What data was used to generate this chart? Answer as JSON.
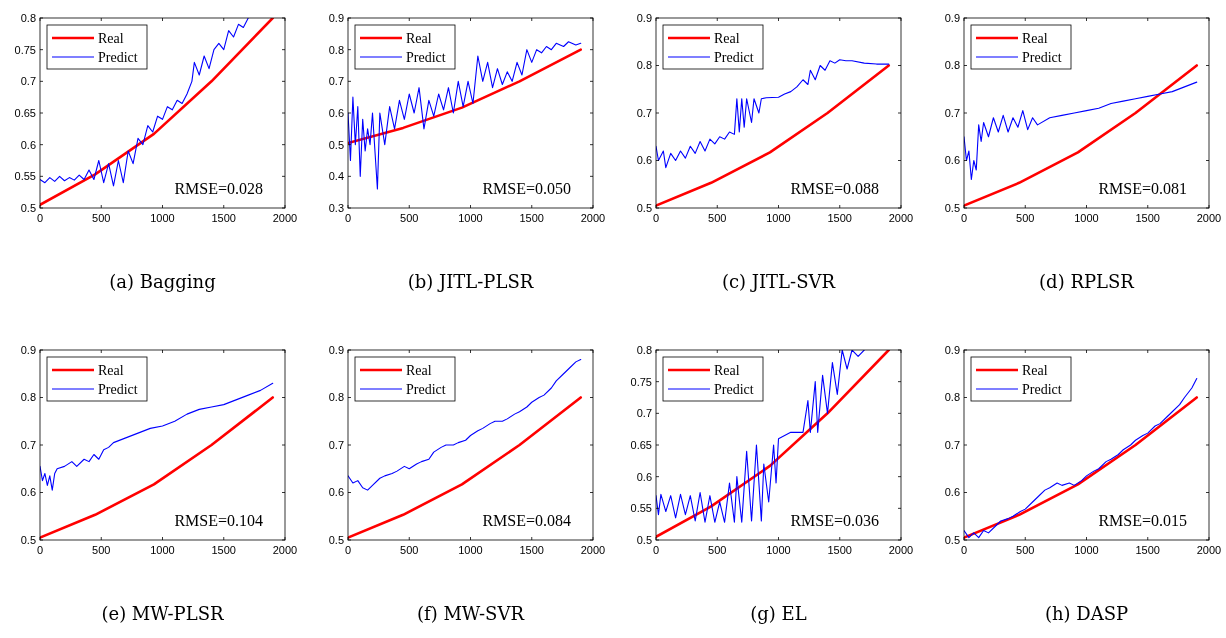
{
  "chart_data": [
    {
      "type": "line",
      "title": "(a) Bagging",
      "xlim": [
        0,
        2000
      ],
      "xticks": [
        0,
        500,
        1000,
        1500,
        2000
      ],
      "ylim": [
        0.5,
        0.8
      ],
      "yticks": [
        0.5,
        0.55,
        0.6,
        0.65,
        0.7,
        0.75,
        0.8
      ],
      "legend": "top left",
      "annotations": [
        "RMSE=0.028"
      ],
      "series": [
        {
          "name": "Real",
          "color": "#ff0000",
          "x": [
            0,
            450,
            930,
            1400,
            1900
          ],
          "values": [
            0.505,
            0.553,
            0.617,
            0.7,
            0.8
          ]
        },
        {
          "name": "Predict",
          "color": "#0000ff",
          "x": [
            0,
            40,
            80,
            120,
            160,
            200,
            240,
            280,
            320,
            360,
            400,
            440,
            480,
            520,
            560,
            600,
            640,
            680,
            720,
            760,
            800,
            840,
            880,
            920,
            960,
            1000,
            1040,
            1080,
            1120,
            1160,
            1200,
            1240,
            1260,
            1300,
            1340,
            1380,
            1420,
            1460,
            1500,
            1540,
            1580,
            1620,
            1660,
            1700
          ],
          "values": [
            0.545,
            0.54,
            0.548,
            0.542,
            0.55,
            0.543,
            0.548,
            0.544,
            0.552,
            0.545,
            0.56,
            0.545,
            0.575,
            0.54,
            0.57,
            0.535,
            0.575,
            0.54,
            0.59,
            0.57,
            0.61,
            0.6,
            0.63,
            0.62,
            0.645,
            0.64,
            0.66,
            0.655,
            0.67,
            0.665,
            0.68,
            0.7,
            0.73,
            0.71,
            0.74,
            0.72,
            0.75,
            0.76,
            0.75,
            0.78,
            0.77,
            0.79,
            0.785,
            0.8
          ]
        }
      ]
    },
    {
      "type": "line",
      "title": "(b) JITL-PLSR",
      "xlim": [
        0,
        2000
      ],
      "xticks": [
        0,
        500,
        1000,
        1500,
        2000
      ],
      "ylim": [
        0.3,
        0.9
      ],
      "yticks": [
        0.3,
        0.4,
        0.5,
        0.6,
        0.7,
        0.8,
        0.9
      ],
      "legend": "top left",
      "annotations": [
        "RMSE=0.050"
      ],
      "series": [
        {
          "name": "Real",
          "color": "#ff0000",
          "x": [
            0,
            450,
            930,
            1400,
            1900
          ],
          "values": [
            0.505,
            0.553,
            0.617,
            0.7,
            0.8
          ]
        },
        {
          "name": "Predict",
          "color": "#0000ff",
          "x": [
            0,
            20,
            40,
            60,
            80,
            100,
            120,
            140,
            160,
            180,
            200,
            240,
            260,
            300,
            340,
            380,
            420,
            460,
            500,
            540,
            580,
            620,
            660,
            700,
            740,
            780,
            820,
            860,
            900,
            940,
            980,
            1020,
            1060,
            1100,
            1140,
            1180,
            1220,
            1260,
            1300,
            1340,
            1380,
            1420,
            1460,
            1500,
            1540,
            1580,
            1620,
            1660,
            1700,
            1760,
            1800,
            1860,
            1900
          ],
          "values": [
            0.6,
            0.45,
            0.65,
            0.5,
            0.62,
            0.4,
            0.58,
            0.48,
            0.55,
            0.5,
            0.6,
            0.36,
            0.6,
            0.5,
            0.62,
            0.55,
            0.64,
            0.58,
            0.66,
            0.6,
            0.68,
            0.55,
            0.64,
            0.59,
            0.66,
            0.61,
            0.68,
            0.6,
            0.7,
            0.62,
            0.7,
            0.63,
            0.78,
            0.7,
            0.76,
            0.68,
            0.74,
            0.69,
            0.73,
            0.7,
            0.76,
            0.72,
            0.8,
            0.76,
            0.8,
            0.79,
            0.81,
            0.8,
            0.82,
            0.81,
            0.825,
            0.815,
            0.82
          ]
        }
      ]
    },
    {
      "type": "line",
      "title": "(c) JITL-SVR",
      "xlim": [
        0,
        2000
      ],
      "xticks": [
        0,
        500,
        1000,
        1500,
        2000
      ],
      "ylim": [
        0.5,
        0.9
      ],
      "yticks": [
        0.5,
        0.6,
        0.7,
        0.8,
        0.9
      ],
      "legend": "top left",
      "annotations": [
        "RMSE=0.088"
      ],
      "series": [
        {
          "name": "Real",
          "color": "#ff0000",
          "x": [
            0,
            450,
            930,
            1400,
            1900
          ],
          "values": [
            0.505,
            0.553,
            0.617,
            0.7,
            0.8
          ]
        },
        {
          "name": "Predict",
          "color": "#0000ff",
          "x": [
            0,
            20,
            60,
            80,
            120,
            160,
            200,
            240,
            280,
            320,
            360,
            400,
            440,
            480,
            520,
            560,
            600,
            640,
            660,
            680,
            700,
            720,
            740,
            780,
            800,
            840,
            860,
            900,
            1000,
            1050,
            1100,
            1150,
            1200,
            1240,
            1260,
            1300,
            1340,
            1380,
            1420,
            1460,
            1500,
            1550,
            1600,
            1700,
            1800,
            1900
          ],
          "values": [
            0.63,
            0.6,
            0.62,
            0.585,
            0.615,
            0.6,
            0.62,
            0.605,
            0.63,
            0.615,
            0.64,
            0.62,
            0.645,
            0.635,
            0.65,
            0.645,
            0.66,
            0.655,
            0.73,
            0.66,
            0.73,
            0.67,
            0.73,
            0.68,
            0.73,
            0.7,
            0.73,
            0.732,
            0.733,
            0.74,
            0.745,
            0.755,
            0.77,
            0.76,
            0.79,
            0.77,
            0.8,
            0.79,
            0.81,
            0.805,
            0.812,
            0.81,
            0.81,
            0.805,
            0.803,
            0.803
          ]
        }
      ]
    },
    {
      "type": "line",
      "title": "(d) RPLSR",
      "xlim": [
        0,
        2000
      ],
      "xticks": [
        0,
        500,
        1000,
        1500,
        2000
      ],
      "ylim": [
        0.5,
        0.9
      ],
      "yticks": [
        0.5,
        0.6,
        0.7,
        0.8,
        0.9
      ],
      "legend": "top left",
      "annotations": [
        "RMSE=0.081"
      ],
      "series": [
        {
          "name": "Real",
          "color": "#ff0000",
          "x": [
            0,
            450,
            930,
            1400,
            1900
          ],
          "values": [
            0.505,
            0.553,
            0.617,
            0.7,
            0.8
          ]
        },
        {
          "name": "Predict",
          "color": "#0000ff",
          "x": [
            0,
            20,
            40,
            60,
            80,
            100,
            120,
            140,
            160,
            200,
            240,
            280,
            320,
            360,
            400,
            440,
            480,
            520,
            560,
            600,
            700,
            800,
            900,
            1000,
            1100,
            1200,
            1300,
            1400,
            1500,
            1600,
            1700,
            1800,
            1900
          ],
          "values": [
            0.65,
            0.6,
            0.62,
            0.56,
            0.6,
            0.58,
            0.675,
            0.64,
            0.68,
            0.65,
            0.69,
            0.66,
            0.695,
            0.66,
            0.69,
            0.67,
            0.705,
            0.665,
            0.69,
            0.675,
            0.69,
            0.695,
            0.7,
            0.705,
            0.71,
            0.72,
            0.725,
            0.73,
            0.735,
            0.74,
            0.745,
            0.755,
            0.765
          ]
        }
      ]
    },
    {
      "type": "line",
      "title": "(e) MW-PLSR",
      "xlim": [
        0,
        2000
      ],
      "xticks": [
        0,
        500,
        1000,
        1500,
        2000
      ],
      "ylim": [
        0.5,
        0.9
      ],
      "yticks": [
        0.5,
        0.6,
        0.7,
        0.8,
        0.9
      ],
      "legend": "top left",
      "annotations": [
        "RMSE=0.104"
      ],
      "series": [
        {
          "name": "Real",
          "color": "#ff0000",
          "x": [
            0,
            450,
            930,
            1400,
            1900
          ],
          "values": [
            0.505,
            0.553,
            0.617,
            0.7,
            0.8
          ]
        },
        {
          "name": "Predict",
          "color": "#0000ff",
          "x": [
            0,
            20,
            40,
            60,
            80,
            100,
            120,
            140,
            200,
            260,
            300,
            360,
            400,
            440,
            480,
            520,
            560,
            600,
            700,
            800,
            900,
            1000,
            1100,
            1200,
            1300,
            1400,
            1500,
            1600,
            1700,
            1800,
            1900
          ],
          "values": [
            0.655,
            0.625,
            0.64,
            0.615,
            0.635,
            0.605,
            0.64,
            0.65,
            0.655,
            0.665,
            0.655,
            0.67,
            0.665,
            0.68,
            0.67,
            0.69,
            0.695,
            0.705,
            0.715,
            0.725,
            0.735,
            0.74,
            0.75,
            0.765,
            0.775,
            0.78,
            0.785,
            0.795,
            0.805,
            0.815,
            0.83
          ]
        }
      ]
    },
    {
      "type": "line",
      "title": "(f) MW-SVR",
      "xlim": [
        0,
        2000
      ],
      "xticks": [
        0,
        500,
        1000,
        1500,
        2000
      ],
      "ylim": [
        0.5,
        0.9
      ],
      "yticks": [
        0.5,
        0.6,
        0.7,
        0.8,
        0.9
      ],
      "legend": "top left",
      "annotations": [
        "RMSE=0.084"
      ],
      "series": [
        {
          "name": "Real",
          "color": "#ff0000",
          "x": [
            0,
            450,
            930,
            1400,
            1900
          ],
          "values": [
            0.505,
            0.553,
            0.617,
            0.7,
            0.8
          ]
        },
        {
          "name": "Predict",
          "color": "#0000ff",
          "x": [
            0,
            40,
            80,
            120,
            160,
            200,
            260,
            300,
            360,
            400,
            460,
            500,
            560,
            600,
            660,
            700,
            760,
            800,
            860,
            900,
            960,
            1000,
            1060,
            1100,
            1160,
            1200,
            1260,
            1300,
            1360,
            1400,
            1460,
            1500,
            1560,
            1600,
            1660,
            1700,
            1760,
            1800,
            1860,
            1900
          ],
          "values": [
            0.635,
            0.62,
            0.625,
            0.61,
            0.605,
            0.615,
            0.63,
            0.635,
            0.64,
            0.645,
            0.655,
            0.65,
            0.66,
            0.665,
            0.67,
            0.685,
            0.695,
            0.7,
            0.7,
            0.705,
            0.71,
            0.72,
            0.73,
            0.735,
            0.745,
            0.75,
            0.75,
            0.755,
            0.765,
            0.77,
            0.78,
            0.79,
            0.8,
            0.805,
            0.82,
            0.835,
            0.85,
            0.86,
            0.875,
            0.88
          ]
        }
      ]
    },
    {
      "type": "line",
      "title": "(g) EL",
      "xlim": [
        0,
        2000
      ],
      "xticks": [
        0,
        500,
        1000,
        1500,
        2000
      ],
      "ylim": [
        0.5,
        0.8
      ],
      "yticks": [
        0.5,
        0.55,
        0.6,
        0.65,
        0.7,
        0.75,
        0.8
      ],
      "legend": "top left",
      "annotations": [
        "RMSE=0.036"
      ],
      "series": [
        {
          "name": "Real",
          "color": "#ff0000",
          "x": [
            0,
            450,
            930,
            1400,
            1900
          ],
          "values": [
            0.505,
            0.553,
            0.617,
            0.7,
            0.8
          ]
        },
        {
          "name": "Predict",
          "color": "#0000ff",
          "x": [
            0,
            20,
            40,
            80,
            120,
            160,
            200,
            240,
            280,
            320,
            360,
            400,
            440,
            480,
            520,
            560,
            600,
            640,
            660,
            700,
            740,
            780,
            820,
            860,
            880,
            920,
            960,
            980,
            1000,
            1100,
            1200,
            1240,
            1260,
            1300,
            1320,
            1360,
            1400,
            1440,
            1480,
            1520,
            1560,
            1600,
            1650,
            1700
          ],
          "values": [
            0.57,
            0.54,
            0.572,
            0.545,
            0.57,
            0.535,
            0.572,
            0.54,
            0.57,
            0.53,
            0.575,
            0.528,
            0.57,
            0.528,
            0.56,
            0.528,
            0.59,
            0.528,
            0.6,
            0.528,
            0.64,
            0.53,
            0.65,
            0.53,
            0.62,
            0.56,
            0.65,
            0.59,
            0.66,
            0.67,
            0.67,
            0.72,
            0.67,
            0.75,
            0.67,
            0.76,
            0.7,
            0.78,
            0.73,
            0.8,
            0.77,
            0.8,
            0.79,
            0.8
          ]
        }
      ]
    },
    {
      "type": "line",
      "title": "(h) DASP",
      "xlim": [
        0,
        2000
      ],
      "xticks": [
        0,
        500,
        1000,
        1500,
        2000
      ],
      "ylim": [
        0.5,
        0.9
      ],
      "yticks": [
        0.5,
        0.6,
        0.7,
        0.8,
        0.9
      ],
      "legend": "top left",
      "annotations": [
        "RMSE=0.015"
      ],
      "series": [
        {
          "name": "Real",
          "color": "#ff0000",
          "x": [
            0,
            450,
            930,
            1400,
            1900
          ],
          "values": [
            0.505,
            0.553,
            0.617,
            0.7,
            0.8
          ]
        },
        {
          "name": "Predict",
          "color": "#0000ff",
          "x": [
            0,
            40,
            80,
            120,
            160,
            200,
            260,
            300,
            360,
            400,
            460,
            500,
            560,
            600,
            660,
            700,
            760,
            800,
            860,
            900,
            960,
            1000,
            1060,
            1100,
            1160,
            1200,
            1260,
            1300,
            1360,
            1400,
            1460,
            1500,
            1560,
            1600,
            1660,
            1700,
            1760,
            1800,
            1860,
            1900
          ],
          "values": [
            0.52,
            0.505,
            0.515,
            0.505,
            0.52,
            0.515,
            0.53,
            0.54,
            0.545,
            0.55,
            0.56,
            0.565,
            0.58,
            0.59,
            0.605,
            0.61,
            0.62,
            0.615,
            0.62,
            0.615,
            0.625,
            0.635,
            0.645,
            0.65,
            0.665,
            0.67,
            0.68,
            0.69,
            0.7,
            0.71,
            0.72,
            0.725,
            0.74,
            0.745,
            0.76,
            0.77,
            0.785,
            0.8,
            0.82,
            0.84
          ]
        }
      ]
    }
  ]
}
